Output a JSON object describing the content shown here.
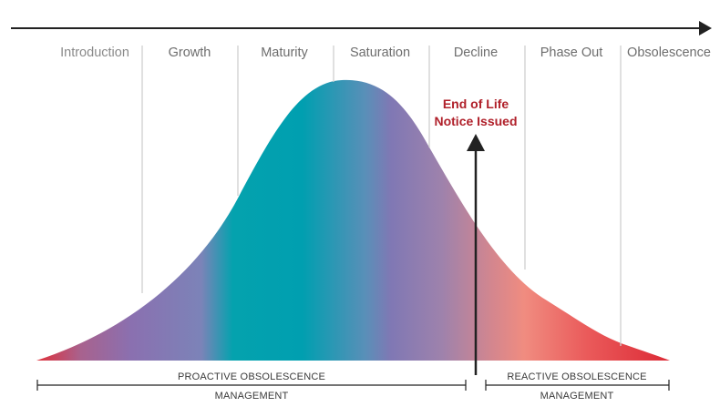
{
  "stages": [
    {
      "label": "Introduction"
    },
    {
      "label": "Growth"
    },
    {
      "label": "Maturity"
    },
    {
      "label": "Saturation"
    },
    {
      "label": "Decline"
    },
    {
      "label": "Phase Out"
    },
    {
      "label": "Obsolescence"
    }
  ],
  "notice": {
    "line1": "End of Life",
    "line2": "Notice Issued"
  },
  "proactive": {
    "line1": "PROACTIVE OBSOLESCENCE",
    "line2": "MANAGEMENT"
  },
  "reactive": {
    "line1": "REACTIVE OBSOLESCENCE",
    "line2": "MANAGEMENT"
  },
  "colors": {
    "curve_gradient": [
      "#e0303a",
      "#8a6fae",
      "#00a0ae",
      "#7e78b4",
      "#ef8a80",
      "#e0303a"
    ],
    "notice_text": "#b0202a",
    "stage_text": "#6d6d6d",
    "axis": "#222222",
    "dividers": "#cfcfcf"
  }
}
